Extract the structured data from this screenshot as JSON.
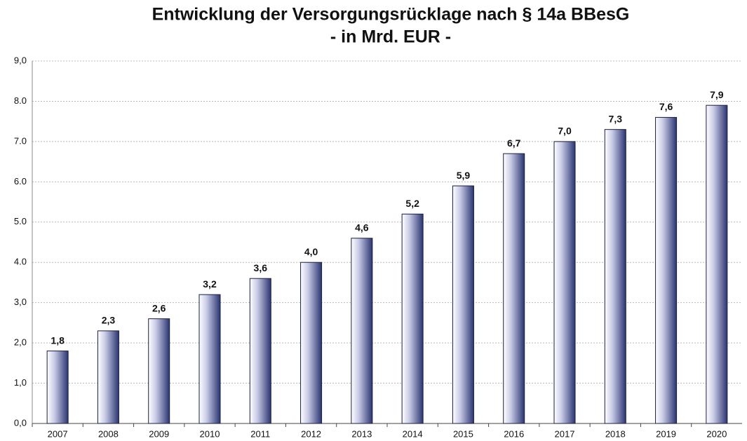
{
  "chart_data": {
    "type": "bar",
    "title": "Entwicklung der Versorgungsrücklage nach § 14a BBesG",
    "subtitle": "- in Mrd. EUR -",
    "categories": [
      "2007",
      "2008",
      "2009",
      "2010",
      "2011",
      "2012",
      "2013",
      "2014",
      "2015",
      "2016",
      "2017",
      "2018",
      "2019",
      "2020"
    ],
    "values": [
      1.8,
      2.3,
      2.6,
      3.2,
      3.6,
      4.0,
      4.6,
      5.2,
      5.9,
      6.7,
      7.0,
      7.3,
      7.6,
      7.9
    ],
    "value_labels": [
      "1,8",
      "2,3",
      "2,6",
      "3,2",
      "3,6",
      "4,0",
      "4,6",
      "5,2",
      "5,9",
      "6,7",
      "7,0",
      "7,3",
      "7,6",
      "7,9"
    ],
    "color": "#2a3470",
    "ylim": [
      0,
      9
    ],
    "yticks": [
      {
        "value": 0,
        "label": "0,0"
      },
      {
        "value": 1,
        "label": "1,0"
      },
      {
        "value": 2,
        "label": "2,0"
      },
      {
        "value": 3,
        "label": "3,0"
      },
      {
        "value": 4,
        "label": "4.0"
      },
      {
        "value": 5,
        "label": "5.0"
      },
      {
        "value": 6,
        "label": "6.0"
      },
      {
        "value": 7,
        "label": "7.0"
      },
      {
        "value": 8,
        "label": "8.0"
      },
      {
        "value": 9,
        "label": "9,0"
      }
    ],
    "grid": true
  }
}
